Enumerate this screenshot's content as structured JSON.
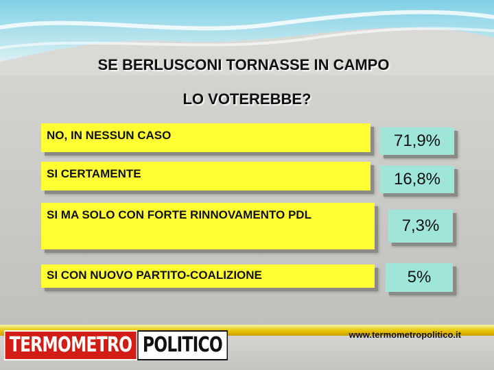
{
  "chart_data": {
    "type": "table",
    "title_line1": "SE BERLUSCONI TORNASSE IN CAMPO",
    "title_line2": "LO VOTEREBBE?",
    "categories": [
      "NO, IN NESSUN CASO",
      "SI CERTAMENTE",
      "SI MA SOLO CON FORTE RINNOVAMENTO PDL",
      "SI CON NUOVO PARTITO-COALIZIONE"
    ],
    "values": [
      71.9,
      16.8,
      7.3,
      5
    ],
    "value_labels": [
      "71,9%",
      "16,8%",
      "7,3%",
      "5%"
    ],
    "unit": "%"
  },
  "colors": {
    "label_fill": "#ffff33",
    "value_fill": "#9fe6d9",
    "logo_red": "#d21d16",
    "band_yellow": "#e8c400"
  },
  "footer": {
    "logo_part1": "TERMOMETRO",
    "logo_part2": "POLITICO",
    "url": "www.termometropolitico.it"
  }
}
